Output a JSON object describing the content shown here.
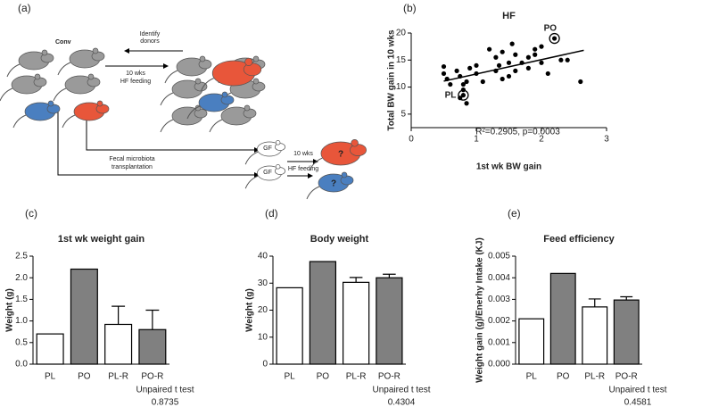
{
  "diagram": {
    "panel_label": "(a)",
    "conv": "Conv",
    "identify_donors": [
      "Identify",
      "donors"
    ],
    "hf_feeding_1": [
      "10 wks",
      "HF feeding"
    ],
    "transplant": [
      "Fecal microbiota",
      "transplantation"
    ],
    "gf": [
      "GF",
      "GF"
    ],
    "hf_feeding_2": [
      "10 wks",
      "HF feeding"
    ],
    "question": [
      "?",
      "?"
    ]
  },
  "chart_data": [
    {
      "type": "scatter",
      "panel_label": "(b)",
      "title": "HF",
      "x_label": "1st wk BW gain",
      "y_label": "Total BW gain in 10 wks",
      "x": [
        0.5,
        0.5,
        0.55,
        0.6,
        0.7,
        0.75,
        0.75,
        0.8,
        0.8,
        0.85,
        0.85,
        0.9,
        1.0,
        1.0,
        1.1,
        1.2,
        1.3,
        1.3,
        1.35,
        1.4,
        1.4,
        1.5,
        1.5,
        1.55,
        1.6,
        1.6,
        1.7,
        1.8,
        1.8,
        1.9,
        1.9,
        2.0,
        2.0,
        2.1,
        2.2,
        2.3,
        2.4,
        2.6,
        0.8
      ],
      "y": [
        13.8,
        12.5,
        11.5,
        10.5,
        13,
        12,
        8,
        9.5,
        10.5,
        11,
        7,
        13.5,
        12.5,
        14,
        11,
        17,
        15.5,
        13,
        14,
        16.5,
        11.5,
        12,
        14.5,
        18,
        13,
        16,
        14.5,
        15.5,
        13.5,
        17,
        16,
        14.5,
        17.5,
        12.5,
        19,
        15,
        15,
        11,
        8.5
      ],
      "color": "#000000",
      "xlim": [
        0,
        3
      ],
      "xticks": [
        0,
        1,
        2,
        3
      ],
      "ylim": [
        2.5,
        20
      ],
      "yticks": [
        5,
        10,
        15,
        20
      ],
      "trendline": {
        "x": [
          0.5,
          2.65
        ],
        "y": [
          11.1,
          16.8
        ]
      },
      "annotations": [
        {
          "text": "PO",
          "x": 2.2,
          "y": 19
        },
        {
          "text": "PL",
          "x": 0.8,
          "y": 8.5
        }
      ],
      "stats_text": "R²=0.2905, p=0.0003"
    },
    {
      "type": "bar",
      "panel_label": "(c)",
      "title": "1st wk weight gain",
      "y_label": "Weight (g)",
      "categories": [
        "PL",
        "PO",
        "PL-R",
        "PO-R"
      ],
      "values": [
        0.7,
        2.2,
        0.92,
        0.8
      ],
      "errors": [
        null,
        null,
        0.42,
        0.45
      ],
      "colors": [
        "#ffffff",
        "#808080",
        "#ffffff",
        "#808080"
      ],
      "ylim": [
        0,
        2.5
      ],
      "yticks": [
        {
          "value": 0,
          "label": "0.0"
        },
        0.5,
        {
          "value": 1,
          "label": "1.0"
        },
        1.5,
        {
          "value": 2,
          "label": "2.0"
        },
        2.5
      ],
      "test_label": "Unpaired t test",
      "p_value": 0.8735
    },
    {
      "type": "bar",
      "panel_label": "(d)",
      "title": "Body weight",
      "y_label": "Weight (g)",
      "categories": [
        "PL",
        "PO",
        "PL-R",
        "PO-R"
      ],
      "values": [
        28.3,
        38,
        30.3,
        32
      ],
      "errors": [
        null,
        null,
        1.8,
        1.3
      ],
      "colors": [
        "#ffffff",
        "#808080",
        "#ffffff",
        "#808080"
      ],
      "ylim": [
        0,
        40
      ],
      "yticks": [
        0,
        10,
        20,
        30,
        40
      ],
      "test_label": "Unpaired t test",
      "p_value": 0.4304
    },
    {
      "type": "bar",
      "panel_label": "(e)",
      "title": "Feed efficiency",
      "y_label": "Weight gain (g)/Enerhy Intake (KJ)",
      "categories": [
        "PL",
        "PO",
        "PL-R",
        "PO-R"
      ],
      "values": [
        0.0021,
        0.0042,
        0.00265,
        0.00297
      ],
      "errors": [
        null,
        null,
        0.00037,
        0.00015
      ],
      "colors": [
        "#ffffff",
        "#808080",
        "#ffffff",
        "#808080"
      ],
      "ylim": [
        0,
        0.005
      ],
      "yticks": [
        {
          "value": 0,
          "label": "0.000"
        },
        0.001,
        0.002,
        0.003,
        0.004,
        0.005
      ],
      "test_label": "Unpaired t test",
      "p_value": 0.4581
    }
  ]
}
